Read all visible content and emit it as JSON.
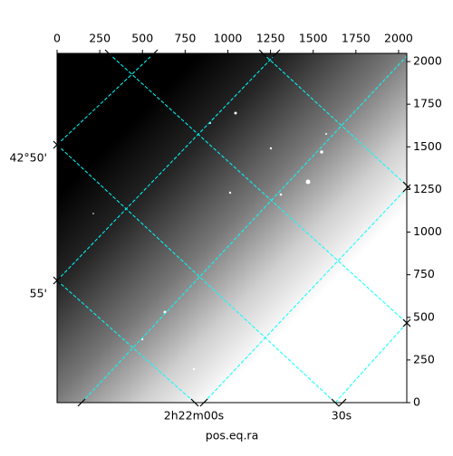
{
  "chart_data": {
    "type": "image",
    "xlabel": "pos.eq.ra",
    "xlim": [
      0,
      2048
    ],
    "ylim": [
      0,
      2048
    ],
    "xticks": [
      0,
      250,
      500,
      750,
      1000,
      1250,
      1500,
      1750,
      2000
    ],
    "yticks": [
      0,
      250,
      500,
      750,
      1000,
      1250,
      1500,
      1750,
      2000
    ],
    "ra_tick_labels": [
      "2h22m00s",
      "30s"
    ],
    "dec_tick_labels": [
      "42°50'",
      "55'"
    ],
    "grid_color": "#00ffff"
  }
}
